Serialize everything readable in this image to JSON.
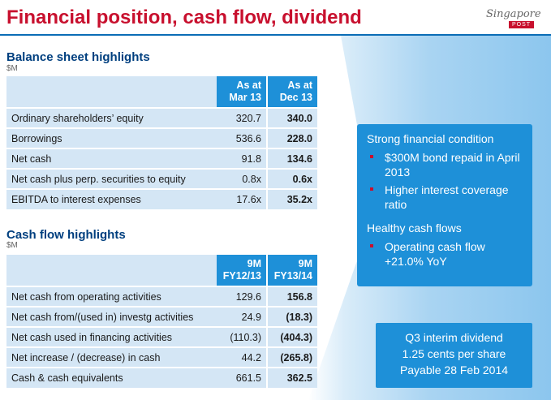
{
  "header": {
    "title": "Financial position, cash flow, dividend",
    "logo_text": "Singapore",
    "logo_post": "POST"
  },
  "balance_sheet": {
    "title": "Balance sheet highlights",
    "unit": "$M",
    "col1_line1": "As at",
    "col1_line2": "Mar 13",
    "col2_line1": "As at",
    "col2_line2": "Dec 13",
    "rows": [
      {
        "label": "Ordinary shareholders’ equity",
        "v1": "320.7",
        "v2": "340.0"
      },
      {
        "label": "Borrowings",
        "v1": "536.6",
        "v2": "228.0"
      },
      {
        "label": "Net cash",
        "v1": "91.8",
        "v2": "134.6"
      },
      {
        "label": "Net cash plus perp. securities to equity",
        "v1": "0.8x",
        "v2": "0.6x"
      },
      {
        "label": "EBITDA to interest expenses",
        "v1": "17.6x",
        "v2": "35.2x"
      }
    ]
  },
  "cash_flow": {
    "title": "Cash flow highlights",
    "unit": "$M",
    "col1_line1": "9M",
    "col1_line2": "FY12/13",
    "col2_line1": "9M",
    "col2_line2": "FY13/14",
    "rows": [
      {
        "label": "Net cash from operating activities",
        "v1": "129.6",
        "v2": "156.8"
      },
      {
        "label": "Net cash from/(used in) investg activities",
        "v1": "24.9",
        "v2": "(18.3)"
      },
      {
        "label": "Net cash used in financing activities",
        "v1": "(110.3)",
        "v2": "(404.3)"
      },
      {
        "label": "Net increase / (decrease) in cash",
        "v1": "44.2",
        "v2": "(265.8)"
      },
      {
        "label": "Cash & cash equivalents",
        "v1": "661.5",
        "v2": "362.5"
      }
    ]
  },
  "callout": {
    "heading1": "Strong financial condition",
    "bullets1": [
      "$300M bond repaid in April 2013",
      "Higher interest coverage ratio"
    ],
    "heading2": "Healthy cash flows",
    "bullets2": [
      "Operating cash flow +21.0% YoY"
    ]
  },
  "dividend": {
    "line1": "Q3 interim dividend",
    "line2": "1.25 cents per share",
    "line3": "Payable 28 Feb 2014"
  },
  "colors": {
    "title_red": "#c8102e",
    "accent_blue": "#1e90d8",
    "row_blue": "#d4e6f5",
    "heading_navy": "#003f7f"
  }
}
